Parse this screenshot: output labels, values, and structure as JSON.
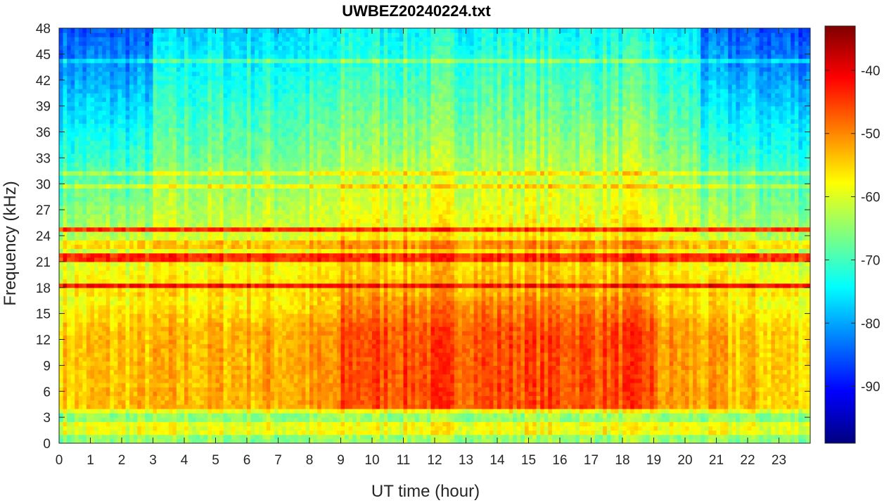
{
  "chart_data": {
    "type": "heatmap",
    "title": "UWBEZ20240224.txt",
    "xlabel": "UT time (hour)",
    "ylabel": "Frequency (kHz)",
    "xlim": [
      0,
      24
    ],
    "ylim": [
      0,
      48
    ],
    "x_ticks": [
      "0",
      "1",
      "2",
      "3",
      "4",
      "5",
      "6",
      "7",
      "8",
      "9",
      "10",
      "11",
      "12",
      "13",
      "14",
      "15",
      "16",
      "17",
      "18",
      "19",
      "20",
      "21",
      "22",
      "23"
    ],
    "y_ticks": [
      "0",
      "3",
      "6",
      "9",
      "12",
      "15",
      "18",
      "21",
      "24",
      "27",
      "30",
      "33",
      "36",
      "39",
      "42",
      "45",
      "48"
    ],
    "colorbar": {
      "colormap": "jet",
      "range": [
        -99,
        -33
      ],
      "ticks": [
        "-90",
        "-80",
        "-70",
        "-60",
        "-50",
        "-40"
      ]
    },
    "spectral_features": {
      "strong_lines_khz": [
        18.2,
        21.4,
        24.9,
        21.9
      ],
      "weak_lines_khz": [
        3.9,
        2.0,
        1.2,
        29.8,
        31.4,
        44.3,
        23.0
      ],
      "broad_band_khz": [
        4,
        17
      ],
      "peak_band_hours": [
        9,
        19
      ],
      "quiet_high_freq_hours": [
        [
          0,
          3
        ],
        [
          20.5,
          24
        ]
      ]
    }
  }
}
